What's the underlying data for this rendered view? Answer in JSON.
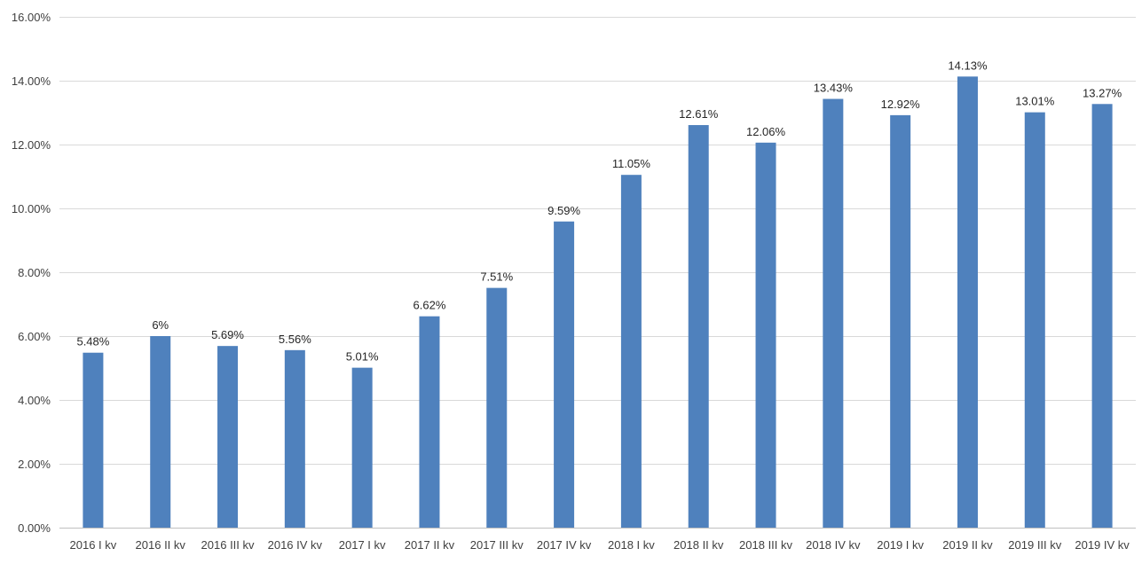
{
  "chart_data": {
    "type": "bar",
    "title": "",
    "xlabel": "",
    "ylabel": "",
    "categories": [
      "2016 I kv",
      "2016 II kv",
      "2016 III kv",
      "2016 IV kv",
      "2017 I kv",
      "2017 II kv",
      "2017 III kv",
      "2017 IV kv",
      "2018 I kv",
      "2018 II kv",
      "2018 III kv",
      "2018 IV kv",
      "2019 I kv",
      "2019 II kv",
      "2019 III kv",
      "2019 IV kv"
    ],
    "values": [
      5.48,
      6,
      5.69,
      5.56,
      5.01,
      6.62,
      7.51,
      9.59,
      11.05,
      12.61,
      12.06,
      13.43,
      12.92,
      14.13,
      13.01,
      13.27
    ],
    "data_labels": [
      "5.48%",
      "6%",
      "5.69%",
      "5.56%",
      "5.01%",
      "6.62%",
      "7.51%",
      "9.59%",
      "11.05%",
      "12.61%",
      "12.06%",
      "13.43%",
      "12.92%",
      "14.13%",
      "13.01%",
      "13.27%"
    ],
    "ylim": [
      0,
      16
    ],
    "yticks": [
      0,
      2,
      4,
      6,
      8,
      10,
      12,
      14,
      16
    ],
    "ytick_labels": [
      "0.00%",
      "2.00%",
      "4.00%",
      "6.00%",
      "8.00%",
      "10.00%",
      "12.00%",
      "14.00%",
      "16.00%"
    ],
    "grid": true,
    "legend": "none",
    "bar_color": "#4f81bd",
    "grid_color": "#d9d9d9"
  }
}
